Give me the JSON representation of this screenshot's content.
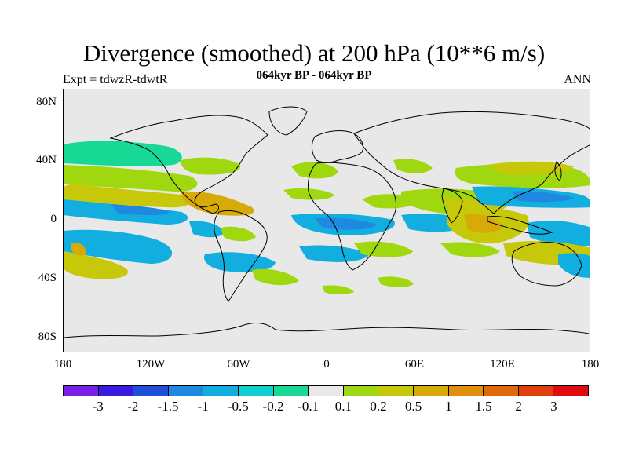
{
  "figure": {
    "title": "Divergence (smoothed) at 200 hPa (10**6 m/s)",
    "subtitle": "064kyr BP - 064kyr BP",
    "left_label": "Expt = tdwzR-tdwtR",
    "right_label": "ANN"
  },
  "map": {
    "projection": "cylindrical-equidistant",
    "lon_range": [
      -180,
      180
    ],
    "lat_range": [
      -90,
      90
    ],
    "background_color": "#e8e8e8",
    "coastline_color": "#000000",
    "lat_ticks": [
      "80N",
      "40N",
      "0",
      "40S",
      "80S"
    ],
    "lon_ticks": [
      "180",
      "120W",
      "60W",
      "0",
      "60E",
      "120E",
      "180"
    ]
  },
  "colorbar": {
    "colors": [
      "#7a1fe6",
      "#3a1ae0",
      "#1f4fd8",
      "#1f88e0",
      "#12aee0",
      "#10cfd0",
      "#18d895",
      "#e8e8e8",
      "#9fd80e",
      "#c8c80a",
      "#d8aa08",
      "#e0900a",
      "#e06a0a",
      "#e0400a",
      "#e00c0c"
    ],
    "labels": [
      "-3",
      "-2",
      "-1.5",
      "-1",
      "-0.5",
      "-0.2",
      "-0.1",
      "0.1",
      "0.2",
      "0.5",
      "1",
      "1.5",
      "2",
      "3"
    ]
  }
}
